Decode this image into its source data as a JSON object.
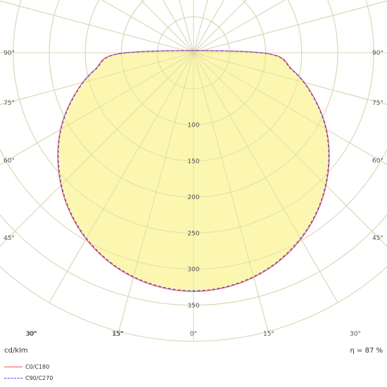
{
  "chart_data": {
    "type": "polar",
    "unit": "cd/klm",
    "efficiency": "η = 87 %",
    "radial_ticks": [
      100,
      150,
      200,
      250,
      300,
      350
    ],
    "radial_tick_labels": [
      "100",
      "150",
      "200",
      "250",
      "300",
      "350"
    ],
    "angle_labels_left": [
      "90°",
      "75°",
      "60°",
      "45°",
      "30°",
      "15°"
    ],
    "angle_labels_bottom": [
      "30°",
      "15°",
      "0°",
      "15°",
      "30°"
    ],
    "angle_labels_right": [
      "90°",
      "75°",
      "60°",
      "45°"
    ],
    "rmax": 400,
    "fill_color": "#fbf6a8",
    "series": [
      {
        "name": "C0/C180",
        "color": "#f05a5a",
        "dash": "solid",
        "gamma": [
          0,
          10,
          20,
          30,
          40,
          50,
          60,
          70,
          80,
          90
        ],
        "values": [
          331,
          327,
          316,
          298,
          274,
          245,
          213,
          177,
          140,
          94
        ]
      },
      {
        "name": "C90/C270",
        "color": "#4a4ae8",
        "dash": "dashed",
        "gamma": [
          0,
          10,
          20,
          30,
          40,
          50,
          60,
          70,
          80,
          90
        ],
        "values": [
          330,
          326,
          315,
          297,
          273,
          244,
          212,
          176,
          139,
          93
        ]
      }
    ]
  }
}
